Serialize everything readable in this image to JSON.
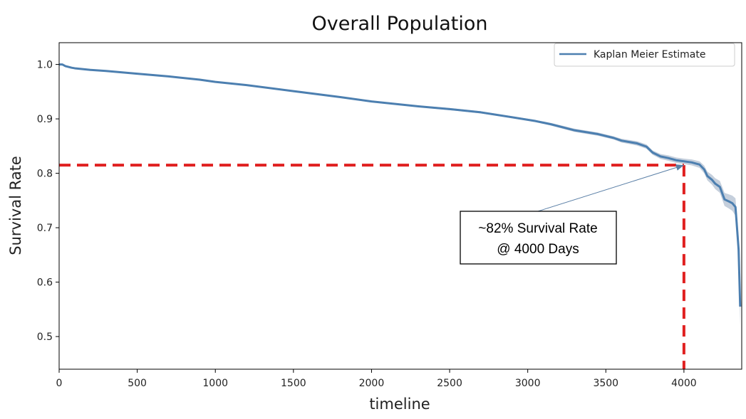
{
  "chart_data": {
    "type": "line",
    "title": "Overall Population",
    "xlabel": "timeline",
    "ylabel": "Survival Rate",
    "xlim": [
      0,
      4370
    ],
    "ylim": [
      0.44,
      1.04
    ],
    "xticks": [
      0,
      500,
      1000,
      1500,
      2000,
      2500,
      3000,
      3500,
      4000
    ],
    "xtick_labels": [
      "0",
      "500",
      "1000",
      "1500",
      "2000",
      "2500",
      "3000",
      "3500",
      "4000"
    ],
    "yticks": [
      0.5,
      0.6,
      0.7,
      0.8,
      0.9,
      1.0
    ],
    "ytick_labels": [
      "0.5",
      "0.6",
      "0.7",
      "0.8",
      "0.9",
      "1.0"
    ],
    "grid": false,
    "legend_position": "top-right",
    "series": [
      {
        "name": "Kaplan Meier Estimate",
        "color": "#4c7fb0",
        "band_color": "#c5cfdc",
        "x": [
          0,
          20,
          40,
          80,
          100,
          200,
          300,
          500,
          700,
          900,
          1000,
          1200,
          1500,
          1800,
          2000,
          2300,
          2500,
          2700,
          2900,
          3050,
          3150,
          3300,
          3450,
          3550,
          3600,
          3700,
          3760,
          3800,
          3850,
          3900,
          3950,
          4000,
          4050,
          4100,
          4130,
          4150,
          4180,
          4200,
          4230,
          4260,
          4290,
          4310,
          4330,
          4350,
          4360
        ],
        "y": [
          1.0,
          1.0,
          0.997,
          0.994,
          0.993,
          0.99,
          0.988,
          0.983,
          0.978,
          0.972,
          0.968,
          0.962,
          0.951,
          0.94,
          0.932,
          0.923,
          0.918,
          0.912,
          0.903,
          0.896,
          0.89,
          0.879,
          0.872,
          0.865,
          0.86,
          0.855,
          0.849,
          0.838,
          0.831,
          0.828,
          0.824,
          0.822,
          0.82,
          0.816,
          0.807,
          0.795,
          0.788,
          0.781,
          0.775,
          0.752,
          0.748,
          0.745,
          0.738,
          0.66,
          0.555
        ],
        "band_halfwidth": [
          0,
          0,
          0.001,
          0.001,
          0.001,
          0.001,
          0.001,
          0.001,
          0.001,
          0.001,
          0.001,
          0.001,
          0.001,
          0.0015,
          0.0015,
          0.0015,
          0.002,
          0.002,
          0.002,
          0.002,
          0.0025,
          0.003,
          0.003,
          0.003,
          0.0035,
          0.004,
          0.004,
          0.004,
          0.0045,
          0.005,
          0.005,
          0.005,
          0.0055,
          0.006,
          0.007,
          0.008,
          0.009,
          0.01,
          0.011,
          0.012,
          0.013,
          0.014,
          0.016,
          0.025,
          0.035
        ]
      }
    ],
    "reference_lines": {
      "color": "#e02020",
      "x": 4000,
      "y": 0.815
    },
    "annotation": {
      "lines": [
        "~82% Survival Rate",
        "@ 4000 Days"
      ],
      "point": [
        4000,
        0.815
      ],
      "arrow_color": "#5a7fa6"
    }
  }
}
